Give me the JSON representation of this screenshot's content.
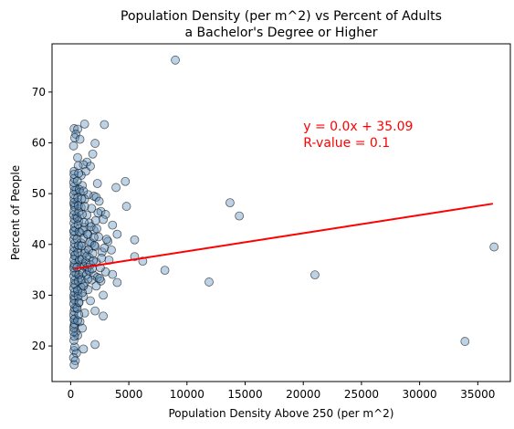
{
  "chart_data": {
    "type": "scatter",
    "title_line1": "Population Density (per m^2) vs Percent of Adults",
    "title_line2": "a Bachelor's Degree or Higher",
    "xlabel": "Population Density Above 250 (per m^2)",
    "ylabel": "Percent of People",
    "xlim": [
      -1600,
      37800
    ],
    "ylim": [
      13.0,
      79.5
    ],
    "xticks": [
      0,
      5000,
      10000,
      15000,
      20000,
      25000,
      30000,
      35000
    ],
    "yticks": [
      20,
      30,
      40,
      50,
      60,
      70
    ],
    "grid": false,
    "marker_color": "#5b8fbd",
    "line_color": "#ff0000",
    "annotation": {
      "equation": "y = 0.0x + 35.09",
      "r_value": "R-value = 0.1",
      "x": 20000,
      "y": 63.3
    },
    "regression": {
      "slope": 0.000356,
      "intercept": 35.09,
      "x_range": [
        300,
        36300
      ]
    },
    "points": [
      [
        9000,
        76.3
      ],
      [
        1200,
        63.7
      ],
      [
        2900,
        63.6
      ],
      [
        300,
        62.8
      ],
      [
        600,
        62.7
      ],
      [
        450,
        61.7
      ],
      [
        350,
        61.0
      ],
      [
        800,
        60.7
      ],
      [
        250,
        59.4
      ],
      [
        2100,
        59.9
      ],
      [
        1900,
        57.8
      ],
      [
        600,
        57.1
      ],
      [
        1400,
        56.2
      ],
      [
        1100,
        55.7
      ],
      [
        1700,
        55.4
      ],
      [
        300,
        54.4
      ],
      [
        1300,
        54.4
      ],
      [
        900,
        53.6
      ],
      [
        2300,
        52.0
      ],
      [
        4700,
        52.4
      ],
      [
        1000,
        51.6
      ],
      [
        3900,
        51.2
      ],
      [
        500,
        50.7
      ],
      [
        800,
        50.3
      ],
      [
        1500,
        49.8
      ],
      [
        2000,
        49.5
      ],
      [
        2200,
        49.3
      ],
      [
        1200,
        48.9
      ],
      [
        600,
        48.3
      ],
      [
        13700,
        48.2
      ],
      [
        300,
        47.8
      ],
      [
        4800,
        47.5
      ],
      [
        900,
        47.3
      ],
      [
        1800,
        47.1
      ],
      [
        2600,
        46.5
      ],
      [
        14500,
        45.6
      ],
      [
        1400,
        45.8
      ],
      [
        500,
        45.6
      ],
      [
        3000,
        45.9
      ],
      [
        2800,
        44.9
      ],
      [
        700,
        44.6
      ],
      [
        1600,
        44.2
      ],
      [
        3600,
        43.8
      ],
      [
        1200,
        43.4
      ],
      [
        2000,
        42.8
      ],
      [
        300,
        42.6
      ],
      [
        800,
        42.3
      ],
      [
        4000,
        42.0
      ],
      [
        1500,
        41.9
      ],
      [
        2400,
        41.5
      ],
      [
        5500,
        40.9
      ],
      [
        3200,
        40.6
      ],
      [
        900,
        40.3
      ],
      [
        1800,
        40.2
      ],
      [
        2100,
        39.6
      ],
      [
        36400,
        39.5
      ],
      [
        600,
        39.2
      ],
      [
        1300,
        38.8
      ],
      [
        2700,
        38.5
      ],
      [
        400,
        38.0
      ],
      [
        5500,
        37.6
      ],
      [
        1600,
        37.4
      ],
      [
        6200,
        36.7
      ],
      [
        700,
        36.6
      ],
      [
        2200,
        36.5
      ],
      [
        1000,
        36.1
      ],
      [
        300,
        35.8
      ],
      [
        8100,
        34.9
      ],
      [
        1400,
        35.0
      ],
      [
        3000,
        34.6
      ],
      [
        500,
        34.2
      ],
      [
        3600,
        34.1
      ],
      [
        21000,
        34.0
      ],
      [
        2000,
        33.9
      ],
      [
        2300,
        33.5
      ],
      [
        800,
        33.5
      ],
      [
        1800,
        33.0
      ],
      [
        2600,
        32.8
      ],
      [
        11900,
        32.6
      ],
      [
        4000,
        32.5
      ],
      [
        1200,
        32.3
      ],
      [
        400,
        32.1
      ],
      [
        2200,
        31.8
      ],
      [
        900,
        31.5
      ],
      [
        1500,
        31.1
      ],
      [
        600,
        30.8
      ],
      [
        2800,
        30.0
      ],
      [
        1100,
        29.7
      ],
      [
        300,
        29.4
      ],
      [
        1700,
        28.9
      ],
      [
        700,
        28.5
      ],
      [
        500,
        27.6
      ],
      [
        2100,
        26.9
      ],
      [
        1200,
        26.5
      ],
      [
        2800,
        25.9
      ],
      [
        350,
        25.4
      ],
      [
        800,
        24.8
      ],
      [
        300,
        24.0
      ],
      [
        1000,
        23.5
      ],
      [
        450,
        22.7
      ],
      [
        600,
        22.1
      ],
      [
        33900,
        20.9
      ],
      [
        2100,
        20.3
      ],
      [
        1100,
        19.4
      ],
      [
        300,
        19.1
      ],
      [
        500,
        18.6
      ],
      [
        250,
        17.7
      ],
      [
        400,
        17.1
      ],
      [
        300,
        16.3
      ],
      [
        350,
        19.8
      ],
      [
        280,
        21.1
      ],
      [
        320,
        21.9
      ],
      [
        260,
        22.8
      ],
      [
        270,
        23.6
      ],
      [
        330,
        24.4
      ],
      [
        290,
        25.2
      ],
      [
        260,
        26.1
      ],
      [
        300,
        26.8
      ],
      [
        340,
        27.5
      ],
      [
        270,
        28.3
      ],
      [
        310,
        29.1
      ],
      [
        280,
        29.9
      ],
      [
        330,
        30.6
      ],
      [
        260,
        31.4
      ],
      [
        300,
        32.2
      ],
      [
        350,
        33.0
      ],
      [
        280,
        33.8
      ],
      [
        320,
        34.6
      ],
      [
        270,
        35.4
      ],
      [
        310,
        36.2
      ],
      [
        290,
        37.0
      ],
      [
        340,
        37.8
      ],
      [
        260,
        38.6
      ],
      [
        300,
        39.4
      ],
      [
        330,
        40.2
      ],
      [
        280,
        41.0
      ],
      [
        310,
        41.8
      ],
      [
        270,
        42.6
      ],
      [
        350,
        43.4
      ],
      [
        290,
        44.2
      ],
      [
        320,
        45.0
      ],
      [
        260,
        45.8
      ],
      [
        300,
        46.6
      ],
      [
        340,
        47.4
      ],
      [
        280,
        48.2
      ],
      [
        310,
        49.0
      ],
      [
        270,
        49.8
      ],
      [
        330,
        50.6
      ],
      [
        300,
        51.4
      ],
      [
        260,
        52.2
      ],
      [
        320,
        53.0
      ],
      [
        290,
        53.8
      ],
      [
        600,
        31.0
      ],
      [
        650,
        32.8
      ],
      [
        700,
        34.0
      ],
      [
        550,
        35.5
      ],
      [
        750,
        37.0
      ],
      [
        620,
        38.4
      ],
      [
        680,
        39.8
      ],
      [
        560,
        41.1
      ],
      [
        720,
        42.5
      ],
      [
        640,
        43.9
      ],
      [
        580,
        45.2
      ],
      [
        700,
        46.4
      ],
      [
        660,
        47.6
      ],
      [
        610,
        49.2
      ],
      [
        740,
        50.8
      ],
      [
        570,
        52.5
      ],
      [
        690,
        54.0
      ],
      [
        650,
        55.5
      ],
      [
        600,
        25.0
      ],
      [
        700,
        26.2
      ],
      [
        560,
        27.4
      ],
      [
        720,
        28.6
      ],
      [
        640,
        29.8
      ],
      [
        1000,
        30.5
      ],
      [
        1100,
        31.8
      ],
      [
        950,
        33.1
      ],
      [
        1050,
        34.4
      ],
      [
        1150,
        35.7
      ],
      [
        1000,
        37.1
      ],
      [
        1200,
        38.3
      ],
      [
        950,
        39.7
      ],
      [
        1100,
        41.2
      ],
      [
        1050,
        42.8
      ],
      [
        1150,
        44.3
      ],
      [
        1000,
        45.9
      ],
      [
        1200,
        47.5
      ],
      [
        950,
        49.0
      ],
      [
        1100,
        50.5
      ],
      [
        1300,
        36.5
      ],
      [
        1450,
        35.5
      ],
      [
        1350,
        34.0
      ],
      [
        1500,
        33.2
      ],
      [
        1600,
        34.8
      ],
      [
        1700,
        36.0
      ],
      [
        1400,
        37.7
      ],
      [
        1550,
        39.0
      ],
      [
        1650,
        40.5
      ],
      [
        1450,
        42.0
      ],
      [
        1750,
        43.5
      ],
      [
        1850,
        35.2
      ],
      [
        1950,
        36.8
      ],
      [
        1900,
        38.2
      ],
      [
        2050,
        39.8
      ],
      [
        2000,
        41.4
      ],
      [
        2250,
        43.1
      ],
      [
        2150,
        44.7
      ],
      [
        2350,
        46.2
      ],
      [
        2450,
        48.5
      ],
      [
        2500,
        33.3
      ],
      [
        2550,
        35.4
      ],
      [
        2650,
        37.3
      ],
      [
        2900,
        39.3
      ],
      [
        3100,
        41.0
      ],
      [
        3300,
        36.9
      ],
      [
        3500,
        38.9
      ]
    ]
  }
}
